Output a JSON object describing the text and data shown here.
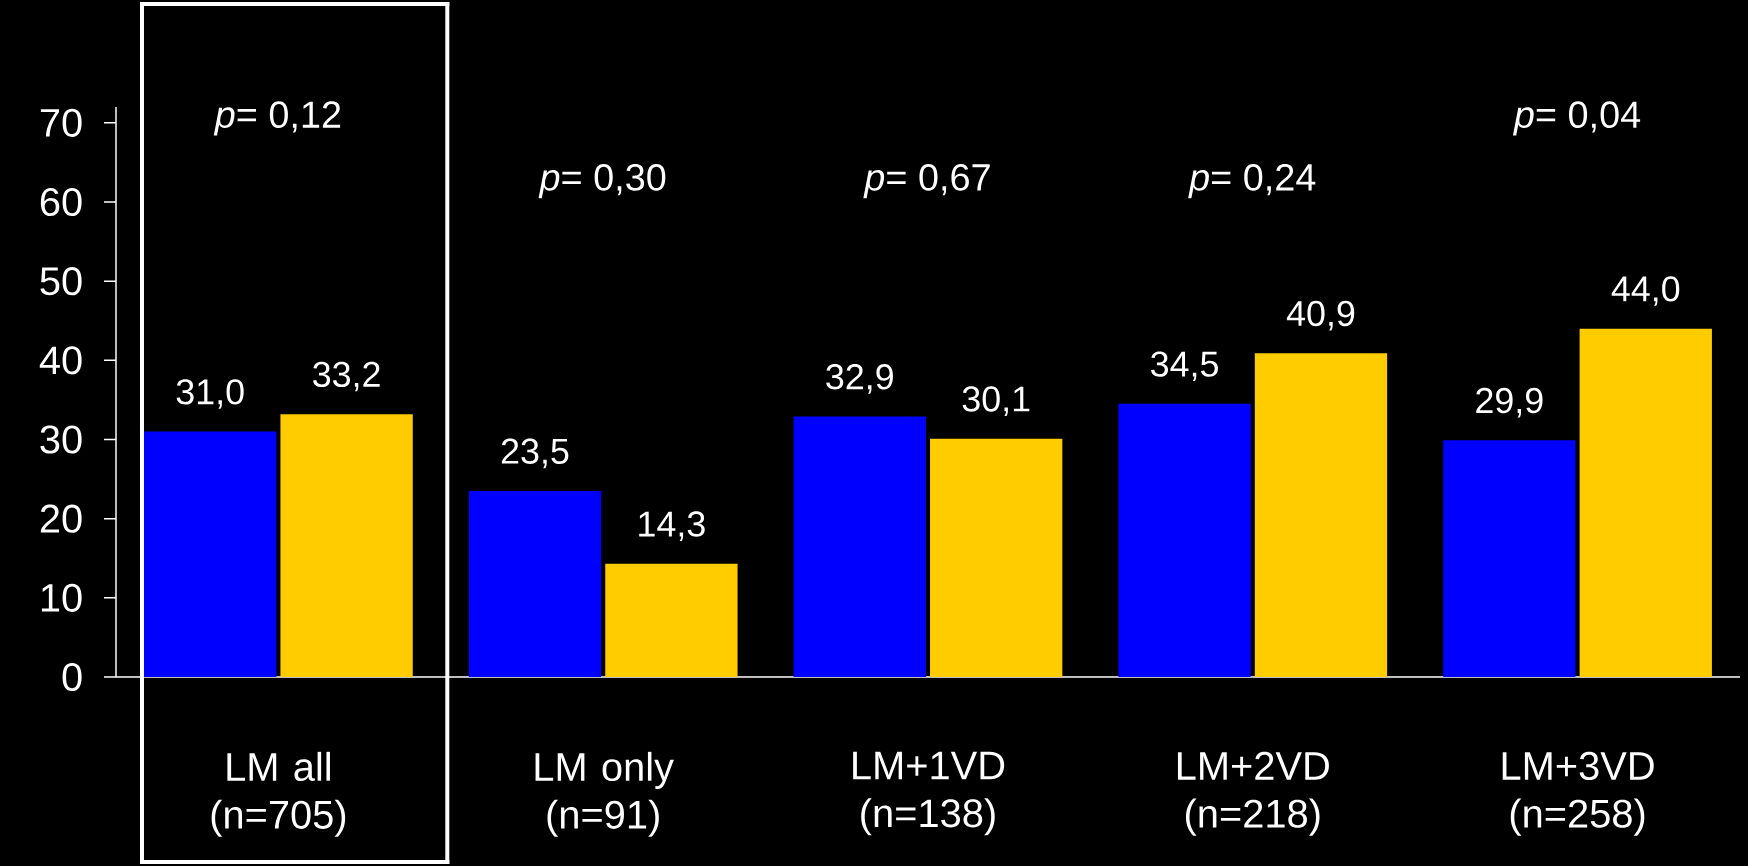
{
  "chart_data": {
    "type": "bar",
    "categories": [
      "LM all (n=705)",
      "LM only (n=91)",
      "LM+1VD (n=138)",
      "LM+2VD (n=218)",
      "LM+3VD (n=258)"
    ],
    "series": [
      {
        "color": "#0000ff",
        "values": [
          31.0,
          23.5,
          32.9,
          34.5,
          29.9
        ],
        "value_labels": [
          "31,0",
          "23,5",
          "32,9",
          "34,5",
          "29,9"
        ]
      },
      {
        "color": "#ffcc00",
        "values": [
          33.2,
          14.3,
          30.1,
          40.9,
          44.0
        ],
        "value_labels": [
          "33,2",
          "14,3",
          "30,1",
          "40,9",
          "44,0"
        ]
      }
    ],
    "ylim": [
      0,
      72
    ],
    "yticks": [
      0,
      10,
      20,
      30,
      40,
      50,
      60,
      70
    ],
    "annotations": [
      "*p*= 0,12",
      "*p*= 0,30",
      "*p*= 0,67",
      "*p*= 0,24",
      "*p*= 0,04"
    ]
  }
}
